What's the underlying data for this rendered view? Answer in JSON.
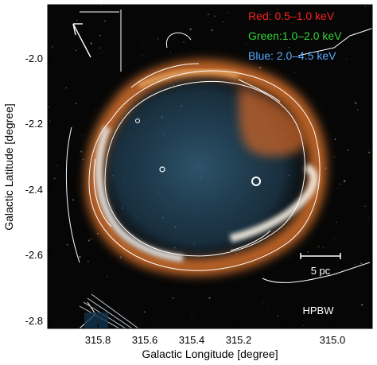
{
  "figure": {
    "x_axis": {
      "label": "Galactic Longitude [degree]",
      "ticks": [
        "315.8",
        "315.6",
        "315.4",
        "315.2",
        "315.0"
      ]
    },
    "y_axis": {
      "label": "Galactic Latitude [degree]",
      "ticks": [
        "-2.0",
        "-2.2",
        "-2.4",
        "-2.6",
        "-2.8"
      ]
    },
    "legend": [
      {
        "text": "Red:  0.5–1.0 keV",
        "color": "#ff2020"
      },
      {
        "text": "Green:1.0–2.0 keV",
        "color": "#35d335"
      },
      {
        "text": "Blue:  2.0–4.5 keV",
        "color": "#5aa8ff"
      }
    ],
    "scale_bar": {
      "label": "5 pc"
    },
    "beam_label": "HPBW",
    "colors": {
      "background": "#060606",
      "shell_orange": "#e07a2a",
      "shell_white": "#f4f1ea",
      "interior_blue": "#2f5a78",
      "contour": "#ffffff"
    }
  }
}
